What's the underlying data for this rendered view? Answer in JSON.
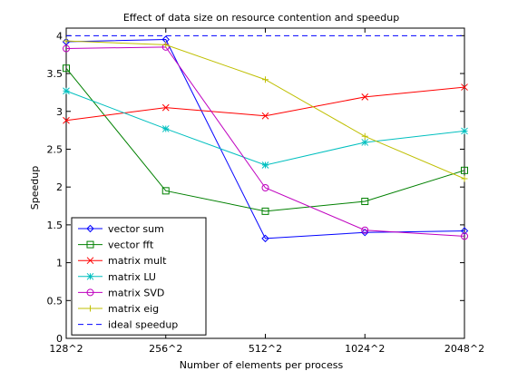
{
  "chart_data": {
    "type": "line",
    "title": "Effect of data size on resource contention and speedup",
    "xlabel": "Number of elements per process",
    "ylabel": "Speedup",
    "categories": [
      "128^2",
      "256^2",
      "512^2",
      "1024^2",
      "2048^2"
    ],
    "ylim": [
      0,
      4.1
    ],
    "yticks": [
      "0",
      "0.5",
      "1",
      "1.5",
      "2",
      "2.5",
      "3",
      "3.5",
      "4"
    ],
    "grid": false,
    "legend_position": "bottom-left",
    "series": [
      {
        "name": "vector sum",
        "color": "#0000ff",
        "marker": "diamond",
        "values": [
          3.92,
          3.95,
          1.32,
          1.4,
          1.42
        ]
      },
      {
        "name": "vector fft",
        "color": "#008000",
        "marker": "square",
        "values": [
          3.57,
          1.95,
          1.68,
          1.81,
          2.22
        ]
      },
      {
        "name": "matrix mult",
        "color": "#ff0000",
        "marker": "x",
        "values": [
          2.88,
          3.05,
          2.94,
          3.19,
          3.32
        ]
      },
      {
        "name": "matrix LU",
        "color": "#00bfbf",
        "marker": "star",
        "values": [
          3.27,
          2.77,
          2.29,
          2.59,
          2.74
        ]
      },
      {
        "name": "matrix SVD",
        "color": "#bf00bf",
        "marker": "circle",
        "values": [
          3.83,
          3.85,
          1.99,
          1.43,
          1.35
        ]
      },
      {
        "name": "matrix eig",
        "color": "#bfbf00",
        "marker": "plus",
        "values": [
          3.93,
          3.88,
          3.42,
          2.67,
          2.11
        ]
      },
      {
        "name": "ideal speedup",
        "color": "#0000ff",
        "marker": "none",
        "dashed": true,
        "values": [
          4,
          4,
          4,
          4,
          4
        ]
      }
    ]
  }
}
